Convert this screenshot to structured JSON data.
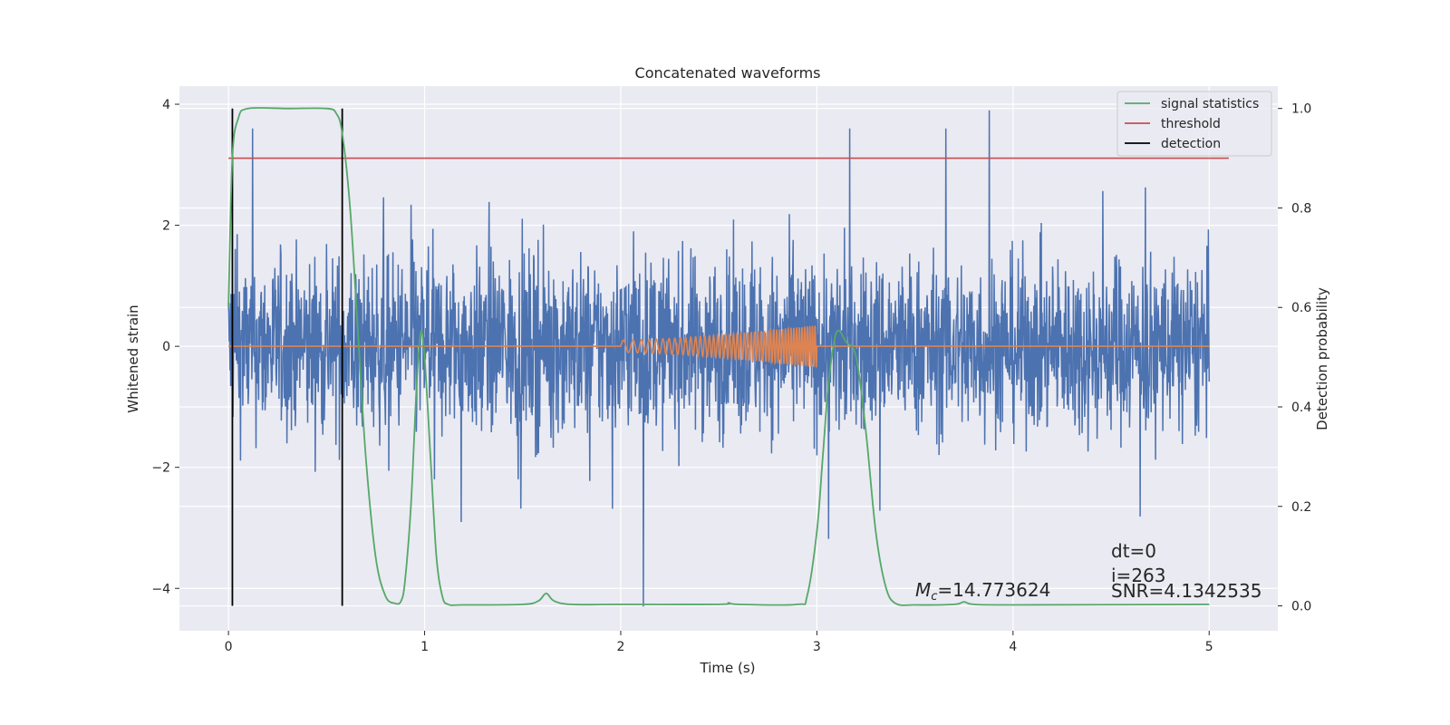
{
  "chart_data": {
    "type": "line",
    "title": "Concatenated waveforms",
    "xlabel": "Time (s)",
    "ylabel": "Whitened strain",
    "ylabel_right": "Detection probability",
    "xlim": [
      -0.25,
      5.35
    ],
    "ylim": [
      -4.7,
      4.3
    ],
    "ylim_right": [
      -0.05,
      1.045
    ],
    "xticks": [
      0,
      1,
      2,
      3,
      4,
      5
    ],
    "xtick_labels": [
      "0",
      "1",
      "2",
      "3",
      "4",
      "5"
    ],
    "yticks": [
      -4,
      -2,
      0,
      2,
      4
    ],
    "ytick_labels": [
      "−4",
      "−2",
      "0",
      "2",
      "4"
    ],
    "yticks_right": [
      0.0,
      0.2,
      0.4,
      0.6,
      0.8,
      1.0
    ],
    "ytick_labels_right": [
      "0.0",
      "0.2",
      "0.4",
      "0.6",
      "0.8",
      "1.0"
    ],
    "grid": true,
    "legend_position": "top-right",
    "legend": [
      {
        "label": "signal statistics",
        "color": "#55a868"
      },
      {
        "label": "threshold",
        "color": "#c44e52"
      },
      {
        "label": "detection",
        "color": "#000000"
      }
    ],
    "series": [
      {
        "role": "whitened strain noise",
        "axis": "left",
        "color": "#4c72b0",
        "x_range": [
          0,
          5
        ],
        "typical_amplitude": 1.3,
        "peak_max": 3.9,
        "peak_min": -4.3
      },
      {
        "role": "injected waveform",
        "axis": "left",
        "color": "#dd8452",
        "x_range": [
          0,
          5
        ],
        "chirp_x_range": [
          2.0,
          3.0
        ],
        "chirp_start_amplitude": 0.1,
        "chirp_end_amplitude": 0.35
      },
      {
        "name": "signal statistics",
        "axis": "right",
        "color": "#55a868",
        "x": [
          0.0,
          0.02,
          0.05,
          0.1,
          0.3,
          0.5,
          0.55,
          0.58,
          0.62,
          0.66,
          0.7,
          0.75,
          0.8,
          0.85,
          0.88,
          0.9,
          0.93,
          0.96,
          0.98,
          1.0,
          1.03,
          1.06,
          1.09,
          1.12,
          1.2,
          1.5,
          1.58,
          1.62,
          1.66,
          1.75,
          2.0,
          2.5,
          2.55,
          2.6,
          2.9,
          2.95,
          3.0,
          3.03,
          3.06,
          3.1,
          3.15,
          3.2,
          3.25,
          3.3,
          3.35,
          3.4,
          3.5,
          3.7,
          3.75,
          3.8,
          4.0,
          5.0
        ],
        "y": [
          0.6,
          0.9,
          0.98,
          1.0,
          1.0,
          1.0,
          0.99,
          0.95,
          0.8,
          0.55,
          0.3,
          0.1,
          0.02,
          0.005,
          0.01,
          0.05,
          0.2,
          0.45,
          0.55,
          0.5,
          0.3,
          0.1,
          0.02,
          0.003,
          0.002,
          0.003,
          0.01,
          0.025,
          0.01,
          0.003,
          0.003,
          0.003,
          0.006,
          0.003,
          0.003,
          0.02,
          0.15,
          0.3,
          0.45,
          0.55,
          0.53,
          0.5,
          0.35,
          0.15,
          0.04,
          0.005,
          0.002,
          0.003,
          0.008,
          0.003,
          0.002,
          0.003
        ]
      },
      {
        "name": "threshold",
        "axis": "right",
        "color": "#c44e52",
        "x": [
          0,
          5.1
        ],
        "y": [
          0.9,
          0.9
        ]
      }
    ],
    "detections": {
      "name": "detection",
      "color": "#000000",
      "x": [
        0.02,
        0.58
      ],
      "y_range_right": [
        0.0,
        1.0
      ]
    },
    "annotations": [
      {
        "id": "chirp-mass",
        "math": "M",
        "sub": "c",
        "text": "=14.773624",
        "x": 3.5
      },
      {
        "id": "dt",
        "text": "dt=0",
        "x": 4.5
      },
      {
        "id": "index",
        "text": "i=263",
        "x": 4.5
      },
      {
        "id": "snr",
        "text": "SNR=4.1342535",
        "x": 4.5
      }
    ]
  }
}
